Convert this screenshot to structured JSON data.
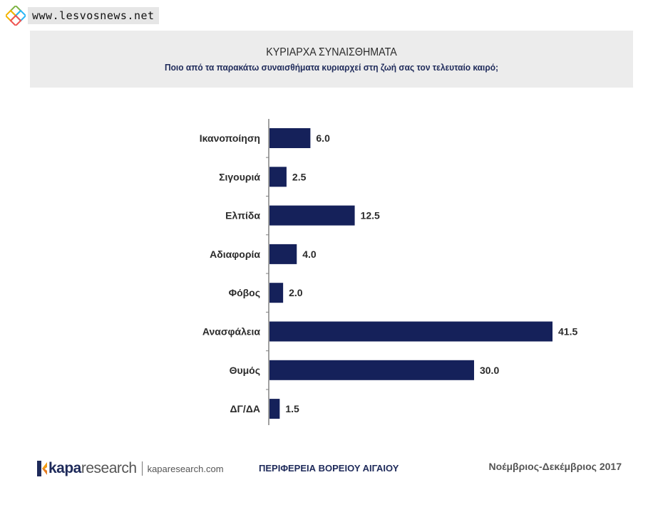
{
  "watermark": {
    "url": "www.lesvosnews.net"
  },
  "header": {
    "title": "ΚΥΡΙΑΡΧΑ ΣΥΝΑΙΣΘΗΜΑΤΑ",
    "subtitle": "Ποιο από τα παρακάτω συναισθήματα κυριαρχεί στη ζωή σας τον τελευταίο καιρό;"
  },
  "colors": {
    "bar": "#15215a",
    "title_band": "#ececec",
    "axis": "#808080"
  },
  "chart_data": {
    "type": "bar",
    "orientation": "horizontal",
    "title": "ΚΥΡΙΑΡΧΑ ΣΥΝΑΙΣΘΗΜΑΤΑ",
    "subtitle": "Ποιο από τα παρακάτω συναισθήματα κυριαρχεί στη ζωή σας τον τελευταίο καιρό;",
    "categories": [
      "Ικανοποίηση",
      "Σιγουριά",
      "Ελπίδα",
      "Αδιαφορία",
      "Φόβος",
      "Ανασφάλεια",
      "Θυμός",
      "ΔΓ/ΔΑ"
    ],
    "values": [
      6.0,
      2.5,
      12.5,
      4.0,
      2.0,
      41.5,
      30.0,
      1.5
    ],
    "value_labels": [
      "6.0",
      "2.5",
      "12.5",
      "4.0",
      "2.0",
      "41.5",
      "30.0",
      "1.5"
    ],
    "xlim": [
      0,
      41.5
    ],
    "grid": false,
    "legend": "none"
  },
  "footer": {
    "brand_kapa": "kapa",
    "brand_research": "research",
    "website": "kaparesearch.com",
    "region": "ΠΕΡΙΦΕΡΕΙΑ ΒΟΡΕΙΟΥ ΑΙΓΑΙΟΥ",
    "date": "Νοέμβριος-Δεκέμβριος 2017"
  }
}
